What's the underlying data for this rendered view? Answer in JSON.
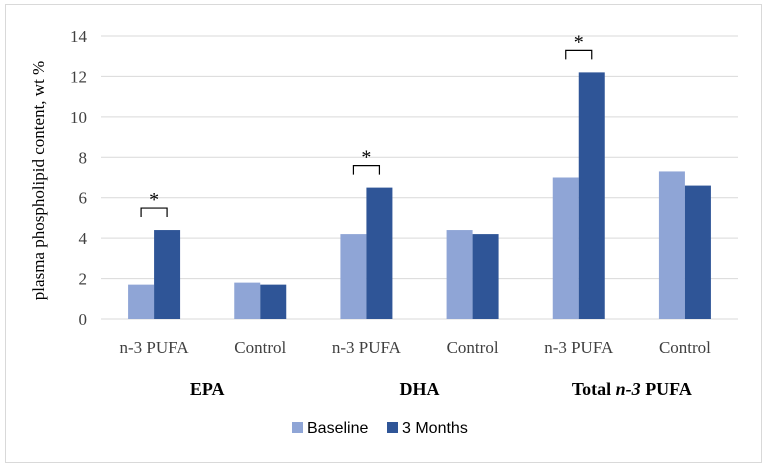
{
  "chart_data": {
    "type": "bar",
    "title": "",
    "ylabel": "plasma phospholipid content, wt %",
    "xlabel": "",
    "ylim": [
      0,
      14
    ],
    "yticks": [
      0,
      2,
      4,
      6,
      8,
      10,
      12,
      14
    ],
    "grid": true,
    "categories": [
      "n-3 PUFA",
      "Control",
      "n-3 PUFA",
      "Control",
      "n-3 PUFA",
      "Control"
    ],
    "groups": [
      {
        "label_plain": "EPA"
      },
      {
        "label_plain": "DHA"
      },
      {
        "label_prefix": "Total ",
        "label_italic": "n-3",
        "label_suffix": " PUFA"
      }
    ],
    "series": [
      {
        "name": "Baseline",
        "color": "#8FA5D6",
        "values": [
          1.7,
          1.8,
          4.2,
          4.4,
          7.0,
          7.3
        ]
      },
      {
        "name": "3 Months",
        "color": "#2F5597",
        "values": [
          4.4,
          1.7,
          6.5,
          4.2,
          12.2,
          6.6
        ]
      }
    ],
    "significance": [
      {
        "category_index": 0,
        "label": "*"
      },
      {
        "category_index": 2,
        "label": "*"
      },
      {
        "category_index": 4,
        "label": "*"
      }
    ],
    "legend_position": "bottom"
  }
}
